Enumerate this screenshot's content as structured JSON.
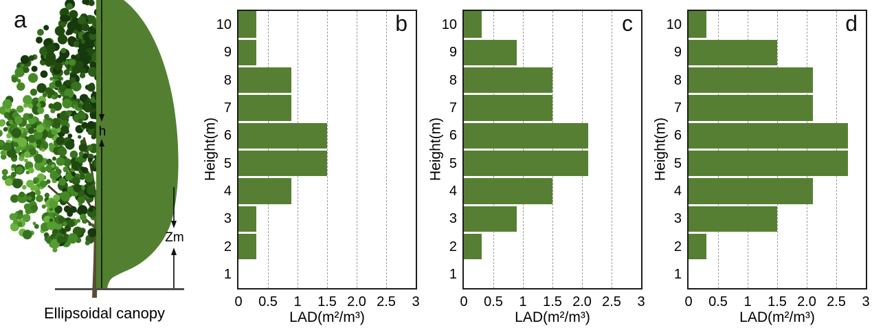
{
  "panel_a": {
    "letter": "a",
    "caption": "Ellipsoidal canopy",
    "h_label": "h",
    "zm_label": "Zm",
    "colors": {
      "ellipsoid": "#528030",
      "trunk": "#5d4a33",
      "ground": "#4d4d4d",
      "axis_line": "#111111"
    }
  },
  "chart_data": [
    {
      "type": "bar",
      "orientation": "horizontal",
      "panel": "b",
      "xlabel": "LAD(m²/m³)",
      "ylabel": "Height(m)",
      "xlim": [
        0,
        3
      ],
      "xtick_labels": [
        "0",
        "0.5",
        "1",
        "1.5",
        "2.0",
        "2.5",
        "3"
      ],
      "xtick_values": [
        0,
        0.5,
        1,
        1.5,
        2.0,
        2.5,
        3
      ],
      "gridline_values": [
        0.5,
        1,
        1.5,
        2.0,
        2.5
      ],
      "grid": "dashed-vertical",
      "grid_color": "#9b9b9b",
      "categories": [
        "10",
        "9",
        "8",
        "7",
        "6",
        "5",
        "4",
        "3",
        "2",
        "1"
      ],
      "values": [
        0.3,
        0.3,
        0.9,
        0.9,
        1.5,
        1.5,
        0.9,
        0.3,
        0.3,
        0
      ],
      "bar_color": "#567f33"
    },
    {
      "type": "bar",
      "orientation": "horizontal",
      "panel": "c",
      "xlabel": "LAD(m²/m³)",
      "ylabel": "Height(m)",
      "xlim": [
        0,
        3
      ],
      "xtick_labels": [
        "0",
        "0.5",
        "1",
        "1.5",
        "2.0",
        "2.5",
        "3"
      ],
      "xtick_values": [
        0,
        0.5,
        1,
        1.5,
        2.0,
        2.5,
        3
      ],
      "gridline_values": [
        0.5,
        1,
        1.5,
        2.0,
        2.5
      ],
      "grid": "dashed-vertical",
      "grid_color": "#9b9b9b",
      "categories": [
        "10",
        "9",
        "8",
        "7",
        "6",
        "5",
        "4",
        "3",
        "2",
        "1"
      ],
      "values": [
        0.3,
        0.9,
        1.5,
        1.5,
        2.1,
        2.1,
        1.5,
        0.9,
        0.3,
        0
      ],
      "bar_color": "#567f33"
    },
    {
      "type": "bar",
      "orientation": "horizontal",
      "panel": "d",
      "xlabel": "LAD(m²/m³)",
      "ylabel": "Height(m)",
      "xlim": [
        0,
        3
      ],
      "xtick_labels": [
        "0",
        "0.5",
        "1",
        "1.5",
        "2.0",
        "2.5",
        "3"
      ],
      "xtick_values": [
        0,
        0.5,
        1,
        1.5,
        2.0,
        2.5,
        3
      ],
      "gridline_values": [
        0.5,
        1,
        1.5,
        2.0,
        2.5
      ],
      "grid": "dashed-vertical",
      "grid_color": "#9b9b9b",
      "categories": [
        "10",
        "9",
        "8",
        "7",
        "6",
        "5",
        "4",
        "3",
        "2",
        "1"
      ],
      "values": [
        0.3,
        1.5,
        2.1,
        2.1,
        2.7,
        2.7,
        2.1,
        1.5,
        0.3,
        0
      ],
      "bar_color": "#567f33"
    }
  ]
}
